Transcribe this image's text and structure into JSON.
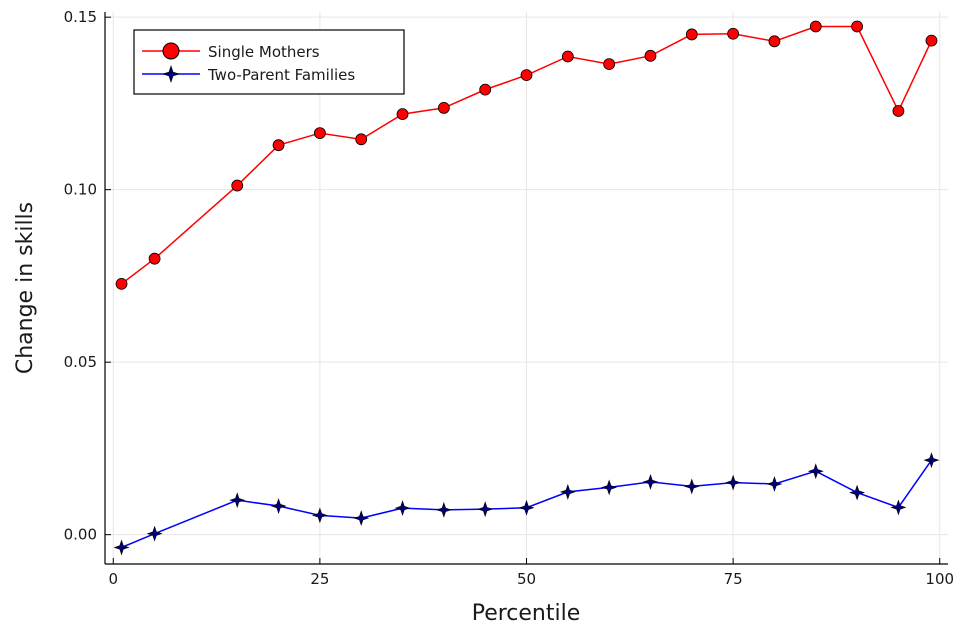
{
  "chart_data": {
    "type": "line",
    "title": "",
    "xlabel": "Percentile",
    "ylabel": "Change in skills",
    "xlim": [
      -1,
      101
    ],
    "ylim": [
      -0.0085,
      0.1515
    ],
    "x_ticks": [
      0,
      25,
      50,
      75,
      100
    ],
    "x_tick_labels": [
      "0",
      "25",
      "50",
      "75",
      "100"
    ],
    "y_ticks": [
      0.0,
      0.05,
      0.1,
      0.15
    ],
    "y_tick_labels": [
      "0.00",
      "0.05",
      "0.10",
      "0.15"
    ],
    "grid": true,
    "legend_position": "top-left",
    "x": [
      1,
      5,
      15,
      20,
      25,
      30,
      35,
      40,
      45,
      50,
      55,
      60,
      65,
      70,
      75,
      80,
      85,
      90,
      95,
      99
    ],
    "series": [
      {
        "name": "Single Mothers",
        "color": "#ff0000",
        "marker": "circle",
        "values": [
          0.0727,
          0.08,
          0.1012,
          0.1129,
          0.1164,
          0.1146,
          0.1219,
          0.1237,
          0.129,
          0.1332,
          0.1386,
          0.1364,
          0.1388,
          0.145,
          0.1452,
          0.143,
          0.1473,
          0.1473,
          0.1228,
          0.1432
        ]
      },
      {
        "name": "Two-Parent Families",
        "color": "#0000ff",
        "marker": "star",
        "values": [
          -0.0037,
          0.0003,
          0.01,
          0.0083,
          0.0056,
          0.0048,
          0.0077,
          0.0072,
          0.0074,
          0.0078,
          0.0124,
          0.0137,
          0.0153,
          0.014,
          0.0151,
          0.0147,
          0.0184,
          0.0122,
          0.0079,
          0.0216
        ]
      }
    ]
  }
}
